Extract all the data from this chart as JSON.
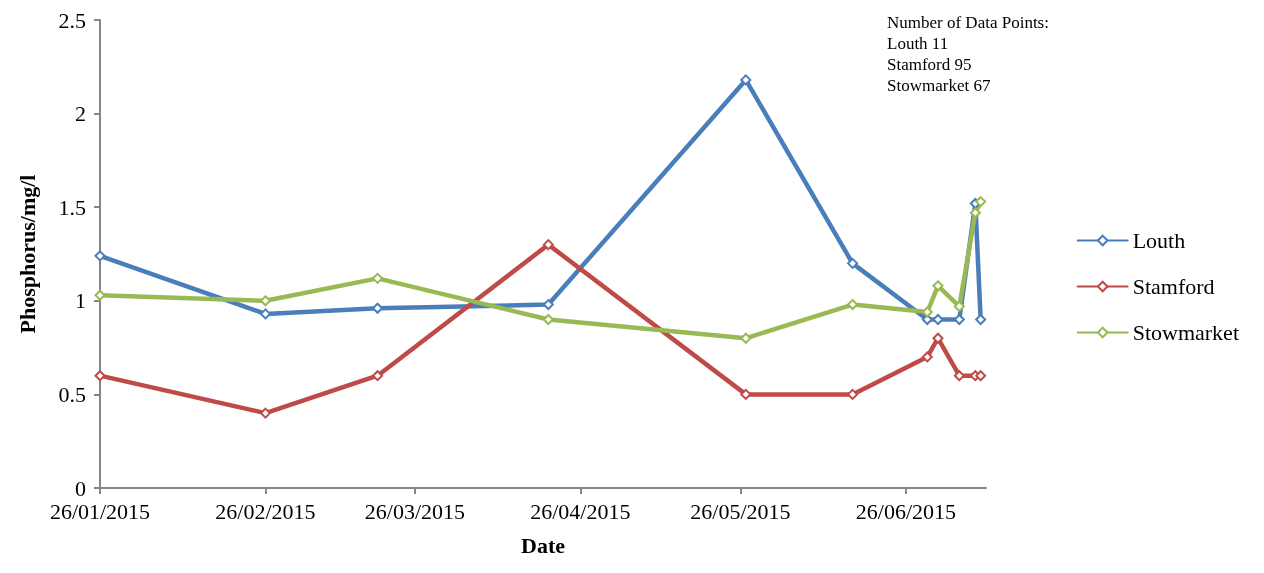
{
  "chart_data": {
    "type": "line",
    "xlabel": "Date",
    "ylabel": "Phosphorus/mg/l",
    "xlim": [
      "2015-01-26",
      "2015-07-11"
    ],
    "xticks": [
      {
        "value": "2015-01-26",
        "label": "26/01/2015"
      },
      {
        "value": "2015-02-26",
        "label": "26/02/2015"
      },
      {
        "value": "2015-03-26",
        "label": "26/03/2015"
      },
      {
        "value": "2015-04-26",
        "label": "26/04/2015"
      },
      {
        "value": "2015-05-26",
        "label": "26/05/2015"
      },
      {
        "value": "2015-06-26",
        "label": "26/06/2015"
      }
    ],
    "ylim": [
      0,
      2.5
    ],
    "yticks": [
      0,
      0.5,
      1,
      1.5,
      2,
      2.5
    ],
    "grid": false,
    "legend": "right",
    "marker": "diamond",
    "line_style": "solid",
    "x": [
      "2015-01-26",
      "2015-02-26",
      "2015-03-19",
      "2015-04-20",
      "2015-05-27",
      "2015-06-16",
      "2015-06-30",
      "2015-07-02",
      "2015-07-06",
      "2015-07-09",
      "2015-07-10"
    ],
    "series": [
      {
        "name": "Louth",
        "color": "#4a7ebb",
        "values": [
          1.24,
          0.93,
          0.96,
          0.98,
          2.18,
          1.2,
          0.9,
          0.9,
          0.9,
          1.52,
          0.9
        ]
      },
      {
        "name": "Stamford",
        "color": "#be4b48",
        "values": [
          0.6,
          0.4,
          0.6,
          1.3,
          0.5,
          0.5,
          0.7,
          0.8,
          0.6,
          0.6,
          0.6
        ]
      },
      {
        "name": "Stowmarket",
        "color": "#98b954",
        "values": [
          1.03,
          1.0,
          1.12,
          0.9,
          0.8,
          0.98,
          0.94,
          1.08,
          0.97,
          1.47,
          1.53
        ]
      }
    ],
    "annotations": [
      "Number of Data Points:",
      "Louth 11",
      "Stamford 95",
      "Stowmarket 67"
    ]
  }
}
